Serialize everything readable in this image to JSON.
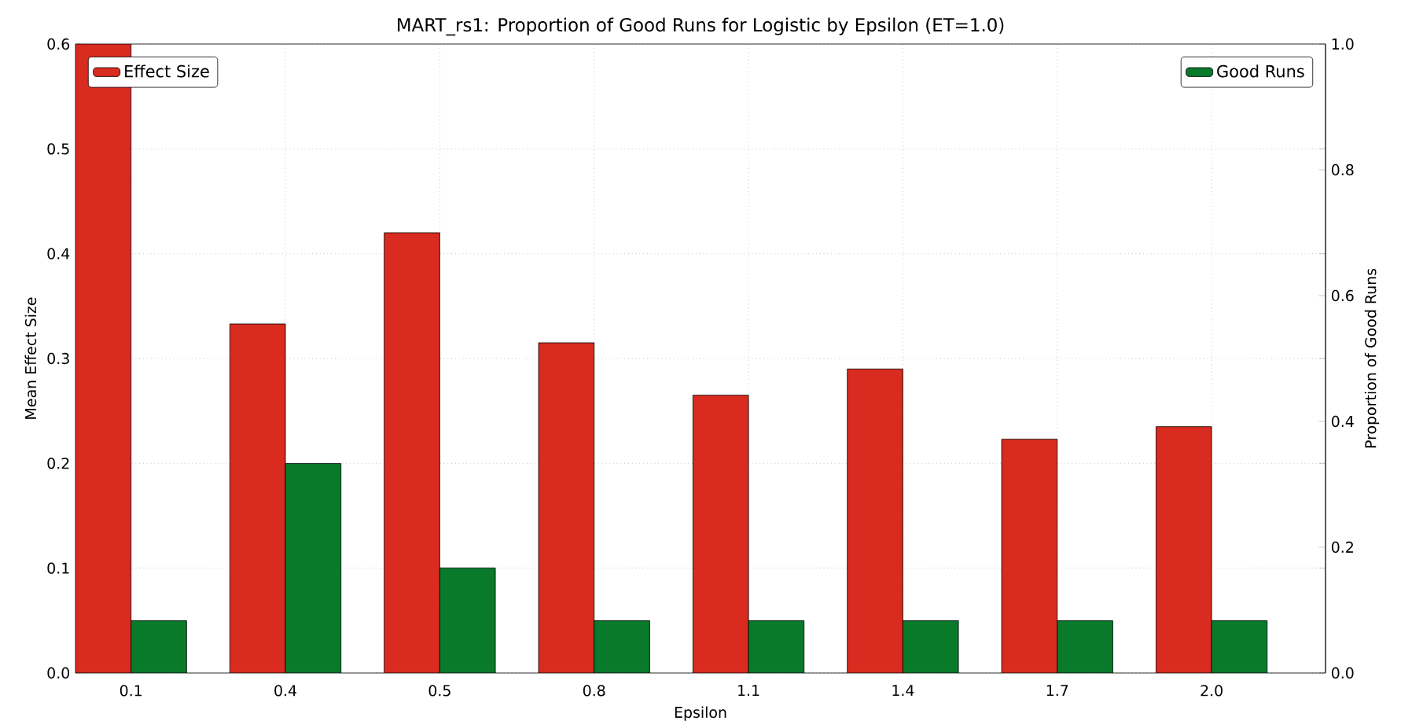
{
  "chart_data": {
    "type": "bar",
    "title": "MART_rs1: Proportion of Good Runs for Logistic by Epsilon (ET=1.0)",
    "xlabel": "Epsilon",
    "ylabel": "Mean Effect Size",
    "y2label": "Proportion of Good Runs",
    "categories": [
      "0.1",
      "0.4",
      "0.5",
      "0.8",
      "1.1",
      "1.4",
      "1.7",
      "2.0"
    ],
    "series": [
      {
        "name": "Effect Size",
        "color": "#d92b1f",
        "values": [
          0.6,
          0.333,
          0.42,
          0.315,
          0.265,
          0.29,
          0.223,
          0.235
        ]
      },
      {
        "name": "Good Runs",
        "color": "#087a2a",
        "axis": "y2",
        "values": [
          0.083,
          0.333,
          0.167,
          0.083,
          0.083,
          0.083,
          0.083,
          0.083
        ]
      }
    ],
    "ylim": [
      0,
      0.6
    ],
    "yticks": [
      {
        "value": 0,
        "label": "0.0"
      },
      0.1,
      0.2,
      0.3,
      0.4,
      0.5,
      0.6
    ],
    "y2lim": [
      0,
      1
    ],
    "y2ticks": [
      {
        "value": 0,
        "label": "0.0"
      },
      0.2,
      0.4,
      0.6,
      0.8,
      {
        "value": 1,
        "label": "1.0"
      }
    ],
    "grid": true,
    "legend": "top"
  }
}
